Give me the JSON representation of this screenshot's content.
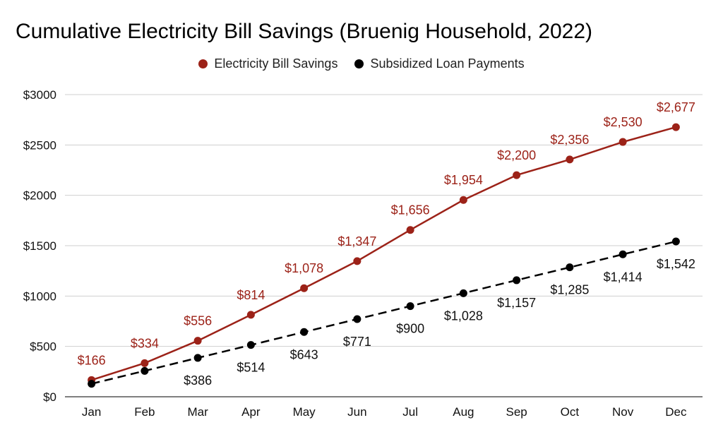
{
  "chart_data": {
    "type": "line",
    "title": "Cumulative Electricity Bill Savings (Bruenig Household, 2022)",
    "categories": [
      "Jan",
      "Feb",
      "Mar",
      "Apr",
      "May",
      "Jun",
      "Jul",
      "Aug",
      "Sep",
      "Oct",
      "Nov",
      "Dec"
    ],
    "series": [
      {
        "name": "Electricity Bill Savings",
        "color": "#9c2218",
        "line_style": "solid",
        "values": [
          166,
          334,
          556,
          814,
          1078,
          1347,
          1656,
          1954,
          2200,
          2356,
          2530,
          2677
        ],
        "labels": [
          "$166",
          "$334",
          "$556",
          "$814",
          "$1,078",
          "$1,347",
          "$1,656",
          "$1,954",
          "$2,200",
          "$2,356",
          "$2,530",
          "$2,677"
        ],
        "label_position": "above"
      },
      {
        "name": "Subsidized Loan Payments",
        "color": "#000000",
        "line_style": "dashed",
        "values": [
          129,
          257,
          386,
          514,
          643,
          771,
          900,
          1028,
          1157,
          1285,
          1414,
          1542
        ],
        "labels": [
          "",
          "",
          "$386",
          "$514",
          "$643",
          "$771",
          "$900",
          "$1,028",
          "$1,157",
          "$1,285",
          "$1,414",
          "$1,542"
        ],
        "label_position": "below"
      }
    ],
    "ylim": [
      0,
      3000
    ],
    "yticks": [
      0,
      500,
      1000,
      1500,
      2000,
      2500,
      3000
    ],
    "ytick_labels": [
      "$0",
      "$500",
      "$1000",
      "$1500",
      "$2000",
      "$2500",
      "$3000"
    ],
    "grid": true,
    "legend_position": "top-center",
    "xlabel": "",
    "ylabel": ""
  }
}
